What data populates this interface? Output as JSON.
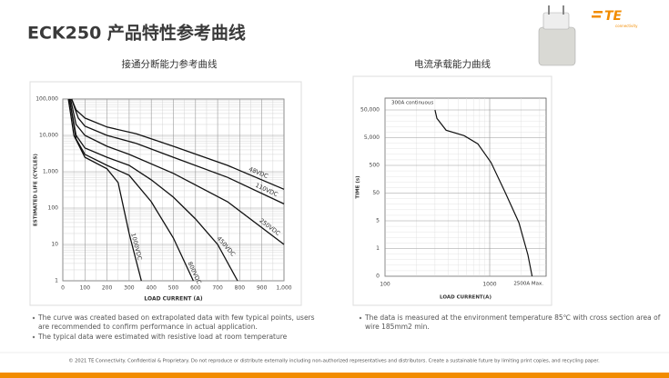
{
  "header": {
    "title": "ECK250 产品特性参考曲线",
    "logo": "TE",
    "logo_sub": "connectivity"
  },
  "chart_data": [
    {
      "type": "line",
      "title": "接通分断能力参考曲线",
      "xlabel": "LOAD CURRENT (A)",
      "ylabel": "ESTIMATED LIFE (CYCLES)",
      "xlim": [
        0,
        1000
      ],
      "xticks": [
        0,
        100,
        200,
        300,
        400,
        500,
        600,
        700,
        800,
        900,
        {
          "value": 1000,
          "label": "1,000"
        }
      ],
      "ylim": [
        1,
        100000
      ],
      "ylog": true,
      "yticks": [
        1,
        10,
        100,
        {
          "value": 1000,
          "label": "1,000"
        },
        {
          "value": 10000,
          "label": "10,000"
        },
        {
          "value": 100000,
          "label": "100,000"
        }
      ],
      "grid": true,
      "color": "#111",
      "series": [
        {
          "name": "48VDC",
          "x": [
            40,
            60,
            100,
            200,
            333,
            500,
            745,
            1000
          ],
          "values": [
            100000,
            50000,
            30000,
            17000,
            11000,
            5000,
            1500,
            330
          ]
        },
        {
          "name": "110VDC",
          "x": [
            40,
            70,
            100,
            200,
            333,
            500,
            745,
            1000
          ],
          "values": [
            100000,
            30000,
            18000,
            10000,
            6000,
            2500,
            700,
            130
          ]
        },
        {
          "name": "250VDC",
          "x": [
            35,
            60,
            100,
            200,
            300,
            500,
            745,
            1000
          ],
          "values": [
            100000,
            20000,
            10000,
            5000,
            3000,
            900,
            150,
            10
          ]
        },
        {
          "name": "450VDC",
          "x": [
            30,
            60,
            100,
            200,
            300,
            400,
            500,
            600,
            700,
            790
          ],
          "values": [
            100000,
            10000,
            4500,
            2500,
            1500,
            600,
            200,
            50,
            10,
            1
          ]
        },
        {
          "name": "800VDC",
          "x": [
            30,
            60,
            100,
            200,
            300,
            400,
            500,
            590
          ],
          "values": [
            100000,
            8000,
            3000,
            1500,
            800,
            150,
            15,
            1
          ]
        },
        {
          "name": "1000VDC",
          "x": [
            25,
            50,
            100,
            200,
            250,
            300,
            355
          ],
          "values": [
            100000,
            10000,
            2500,
            1200,
            500,
            20,
            1
          ]
        }
      ]
    },
    {
      "type": "line",
      "title": "电流承载能力曲线",
      "xlabel": "LOAD CURRENT(A)",
      "ylabel": "TIME (s)",
      "xlim": [
        100,
        3460
      ],
      "xlog": true,
      "xticks": [
        100,
        1000
      ],
      "ylim": [
        0,
        50000
      ],
      "yticks": [
        0,
        1,
        5,
        50,
        500,
        {
          "value": 5000,
          "label": "5,000"
        },
        {
          "value": 50000,
          "label": "50,000"
        }
      ],
      "grid": true,
      "color": "#111",
      "annotations": [
        "300A continuous",
        "2500A Max."
      ],
      "series": [
        {
          "name": null,
          "x": [
            300,
            313,
            383,
            571,
            770,
            1030,
            1400,
            1900,
            2320,
            2540
          ],
          "values": [
            50000,
            25000,
            9300,
            5900,
            3000,
            630,
            55,
            4.5,
            0.77,
            0
          ]
        }
      ]
    }
  ],
  "notes_left": [
    "The curve was created based on extrapolated data with few typical points, users are recommended to confirm performance in actual application.",
    "The typical data were estimated with resistive load at room temperature"
  ],
  "notes_right": [
    "The data is measured at the environment temperature 85℃ with cross section area of wire 185mm2 min."
  ],
  "footer": "© 2021 TE Connectivity. Confidential & Proprietary. Do not reproduce or distribute externally including non-authorized representatives and distributors. Create a sustainable future by limiting print copies, and recycling paper."
}
